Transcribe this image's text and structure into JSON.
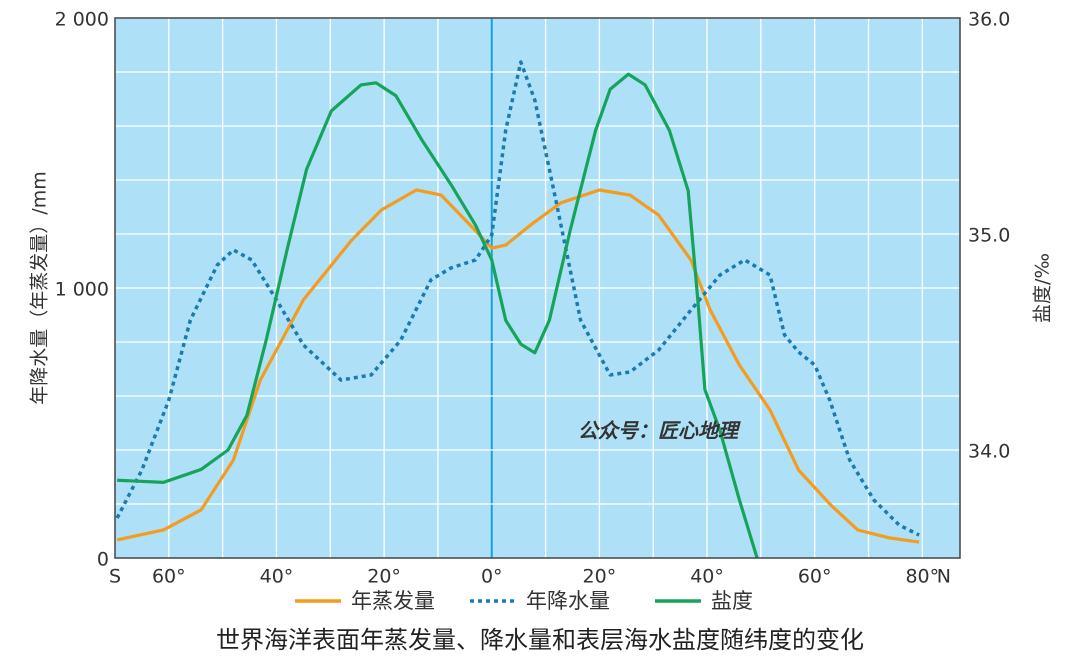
{
  "chart_data": {
    "type": "line",
    "title": "世界海洋表面年蒸发量、降水量和表层海水盐度随纬度的变化",
    "y_label": "年降水量（年蒸发量）/mm",
    "y2_label": "盐度/‰",
    "annotation": "公众号：匠心地理",
    "legend": "bottom",
    "grid": true,
    "xlim": [
      -70,
      87
    ],
    "ylim": [
      0,
      2000
    ],
    "y2lim": [
      33.5,
      36.0
    ],
    "xticks": [
      {
        "value": -70,
        "label": "S"
      },
      {
        "value": -60,
        "label": "60°"
      },
      {
        "value": -40,
        "label": "40°"
      },
      {
        "value": -20,
        "label": "20°"
      },
      {
        "value": 0,
        "label": "0°"
      },
      {
        "value": 20,
        "label": "20°"
      },
      {
        "value": 40,
        "label": "40°"
      },
      {
        "value": 60,
        "label": "60°"
      },
      {
        "value": 80,
        "label": "80°"
      },
      {
        "value": 84,
        "label": "N"
      }
    ],
    "yticks": [
      0,
      {
        "value": 1000,
        "label": "1 000"
      },
      {
        "value": 2000,
        "label": "2 000"
      }
    ],
    "y2ticks": [
      {
        "value": 34.0,
        "label": "34.0"
      },
      {
        "value": 35.0,
        "label": "35.0"
      },
      {
        "value": 36.0,
        "label": "36.0"
      }
    ],
    "xgrid": [
      -60,
      -50,
      -40,
      -30,
      -20,
      -10,
      0,
      10,
      20,
      30,
      40,
      50,
      60,
      70,
      80
    ],
    "ygrid": [
      200,
      400,
      600,
      800,
      1000,
      1200,
      1400,
      1600,
      1800,
      2000
    ],
    "series": [
      {
        "name": "年蒸发量",
        "color": "#f39c1f",
        "style": "solid",
        "x": [
          -69.6,
          -61,
          -54,
          -48,
          -43,
          -35,
          -26,
          -20.5,
          -14,
          -9.4,
          -4,
          0,
          2.6,
          7.2,
          12.8,
          20,
          25.7,
          31,
          37,
          40.6,
          46,
          51.7,
          57,
          63,
          68,
          74,
          79.4
        ],
        "values": [
          67,
          104,
          178,
          363,
          659,
          956,
          1178,
          1289,
          1363,
          1344,
          1233,
          1148,
          1159,
          1233,
          1315,
          1363,
          1344,
          1270,
          1104,
          918,
          715,
          548,
          326,
          196,
          104,
          74,
          59
        ]
      },
      {
        "name": "年降水量",
        "color": "#1a7bb0",
        "style": "dotted",
        "x": [
          -69.6,
          -65,
          -60,
          -56,
          -51,
          -48,
          -44.6,
          -40,
          -35,
          -28,
          -22.4,
          -16.9,
          -11.3,
          -7.6,
          -3,
          0,
          2.6,
          5.4,
          8,
          11.9,
          16.5,
          22,
          25.7,
          31,
          37,
          42.4,
          47,
          51.7,
          54.4,
          57,
          60,
          62.8,
          66.5,
          71,
          75.7,
          79.4
        ],
        "values": [
          148,
          326,
          585,
          881,
          1085,
          1141,
          1104,
          956,
          789,
          659,
          678,
          807,
          1030,
          1074,
          1104,
          1196,
          1585,
          1837,
          1696,
          1326,
          881,
          678,
          689,
          770,
          918,
          1048,
          1104,
          1048,
          826,
          763,
          715,
          585,
          363,
          215,
          122,
          85
        ]
      },
      {
        "name": "盐度",
        "color": "#17a45a",
        "style": "solid",
        "axis": "y2",
        "x": [
          -69.6,
          -61,
          -54,
          -49,
          -45.5,
          -41.9,
          -38,
          -34.4,
          -29.8,
          -24.3,
          -21.5,
          -17.8,
          -13.1,
          -7.6,
          -3,
          0,
          2.6,
          5.4,
          8,
          10.7,
          14.6,
          19.3,
          22,
          25.4,
          28.5,
          33,
          36.5,
          38.3,
          39.6,
          42.4,
          46,
          49.3
        ],
        "values": [
          33.86,
          33.85,
          33.91,
          34.0,
          34.16,
          34.51,
          34.93,
          35.3,
          35.57,
          35.69,
          35.7,
          35.64,
          35.44,
          35.23,
          35.04,
          34.88,
          34.6,
          34.49,
          34.45,
          34.6,
          35.02,
          35.48,
          35.67,
          35.74,
          35.69,
          35.48,
          35.2,
          34.69,
          34.28,
          34.09,
          33.77,
          33.5
        ]
      }
    ]
  }
}
